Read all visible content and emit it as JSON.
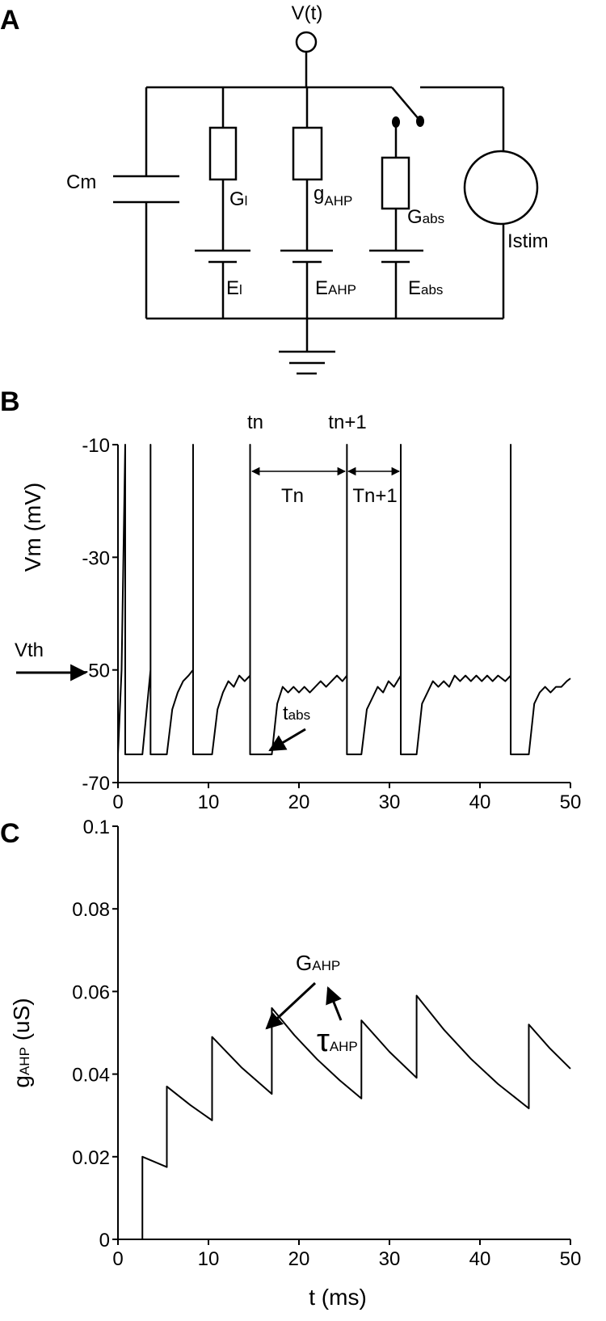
{
  "panel_a": {
    "label": "A",
    "voltage": "V(t)",
    "capacitance": "Cm",
    "leak_conductance": {
      "base": "G",
      "sub": "l"
    },
    "ahp_conductance": {
      "base": "g",
      "sub": "AHP"
    },
    "abs_conductance": {
      "base": "G",
      "sub": "abs"
    },
    "stimulus": "Istim",
    "leak_reversal": {
      "base": "E",
      "sub": "l"
    },
    "ahp_reversal": {
      "base": "E",
      "sub": "AHP"
    },
    "abs_reversal": {
      "base": "E",
      "sub": "abs"
    }
  },
  "chart_data": [
    {
      "type": "line",
      "panel_label": "B",
      "ylabel": "Vm (mV)",
      "color": "#000000",
      "xlim": [
        0,
        50
      ],
      "xticks": [
        0,
        10,
        20,
        30,
        40,
        50
      ],
      "ylim": [
        -70,
        -10
      ],
      "yticks": [
        -10,
        -30,
        -50,
        -70
      ],
      "x": [
        0,
        0.4,
        0.8,
        0.8,
        2.7,
        3.6,
        3.6,
        3.6,
        5.4,
        6.0,
        6.6,
        7.2,
        7.8,
        8.3,
        8.3,
        8.3,
        10.4,
        11.0,
        11.6,
        12.2,
        12.8,
        13.4,
        14.0,
        14.6,
        14.6,
        14.6,
        17.0,
        17.6,
        18.2,
        18.8,
        19.4,
        20.0,
        20.6,
        21.2,
        21.8,
        22.4,
        23.0,
        23.6,
        24.2,
        24.8,
        25.3,
        25.3,
        25.3,
        26.9,
        27.5,
        28.1,
        28.7,
        29.3,
        29.9,
        30.5,
        31.25,
        31.25,
        31.25,
        33.0,
        33.6,
        34.2,
        34.8,
        35.4,
        36.0,
        36.6,
        37.2,
        37.8,
        38.4,
        39.0,
        39.6,
        40.2,
        40.8,
        41.4,
        42.0,
        42.8,
        43.4,
        43.4,
        43.4,
        45.4,
        46.0,
        46.6,
        47.2,
        47.8,
        48.4,
        49.0,
        49.6,
        50
      ],
      "values": [
        -65,
        -50,
        -10,
        -65,
        -65,
        -50,
        -10,
        -65,
        -65,
        -57,
        -54,
        -52,
        -51,
        -50,
        -10,
        -65,
        -65,
        -57,
        -54,
        -52,
        -53,
        -51,
        -52,
        -51,
        -10,
        -65,
        -65,
        -56,
        -53,
        -54,
        -53,
        -54,
        -53,
        -54,
        -53,
        -52,
        -53,
        -52,
        -51,
        -52,
        -51,
        -10,
        -65,
        -65,
        -57,
        -55,
        -53,
        -54,
        -52,
        -53,
        -51,
        -10,
        -65,
        -65,
        -56,
        -54,
        -52,
        -53,
        -52,
        -53,
        -51,
        -52,
        -51,
        -52,
        -51,
        -52,
        -51,
        -52,
        -51,
        -52,
        -51,
        -10,
        -65,
        -65,
        -56,
        -54,
        -53,
        -54,
        -53,
        -53,
        -52,
        -51.5
      ],
      "annotations": {
        "spike_n": "tn",
        "spike_n1": "tn+1",
        "interval_n": "Tn",
        "interval_n1": "Tn+1",
        "threshold": "Vth",
        "refractory": {
          "base": "t",
          "sub": "abs"
        }
      }
    },
    {
      "type": "line",
      "panel_label": "C",
      "color": "#000000",
      "ylabel": {
        "base": "g",
        "sub": "AHP",
        "rest": " (uS)"
      },
      "xlabel": "t (ms)",
      "xlim": [
        0,
        50
      ],
      "xticks": [
        0,
        10,
        20,
        30,
        40,
        50
      ],
      "ylim": [
        0,
        0.1
      ],
      "yticks": [
        0,
        0.02,
        0.04,
        0.06,
        0.08,
        0.1
      ],
      "x": [
        0,
        2.7,
        2.7,
        5.4,
        5.4,
        8.0,
        10.4,
        10.4,
        13.7,
        17.0,
        17.0,
        19.5,
        22.0,
        24.5,
        26.9,
        26.9,
        30.0,
        33.0,
        33.0,
        36.0,
        39.0,
        42.0,
        45.4,
        45.4,
        47.7,
        50
      ],
      "values": [
        0,
        0,
        0.02,
        0.0175,
        0.037,
        0.0325,
        0.0288,
        0.049,
        0.0415,
        0.0352,
        0.056,
        0.0494,
        0.0436,
        0.0385,
        0.0341,
        0.053,
        0.0454,
        0.0391,
        0.059,
        0.0508,
        0.0437,
        0.0376,
        0.0317,
        0.052,
        0.0463,
        0.0413
      ],
      "annotations": {
        "peak": {
          "base": "G",
          "sub": "AHP"
        },
        "decay": {
          "base": "τ",
          "sub": "AHP"
        }
      }
    }
  ]
}
